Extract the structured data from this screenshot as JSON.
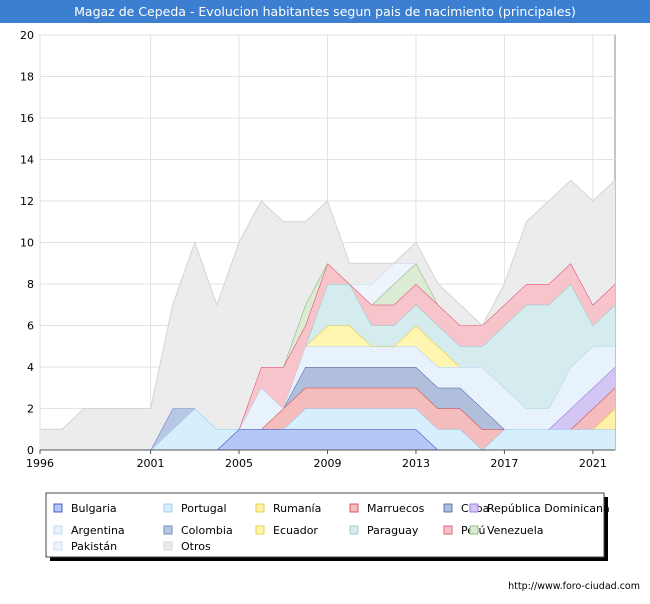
{
  "chart_data": {
    "type": "area",
    "title": "Magaz de Cepeda - Evolucion habitantes segun pais de nacimiento (principales)",
    "xlabel": "",
    "ylabel": "",
    "xlim": [
      1996,
      2022
    ],
    "ylim": [
      0,
      20
    ],
    "x_ticks": [
      1996,
      2001,
      2005,
      2009,
      2013,
      2017,
      2021
    ],
    "y_ticks": [
      0,
      2,
      4,
      6,
      8,
      10,
      12,
      14,
      16,
      18,
      20
    ],
    "grid": true,
    "legend_position": "bottom",
    "x": [
      1996,
      1997,
      1998,
      1999,
      2000,
      2001,
      2002,
      2003,
      2004,
      2005,
      2006,
      2007,
      2008,
      2009,
      2010,
      2011,
      2012,
      2013,
      2014,
      2015,
      2016,
      2017,
      2018,
      2019,
      2020,
      2021,
      2022
    ],
    "series": [
      {
        "name": "Bulgaria",
        "fill": "#b3c8f5",
        "line": "#2a3cbf",
        "values": [
          0,
          0,
          0,
          0,
          0,
          0,
          0,
          0,
          0,
          1,
          1,
          1,
          1,
          1,
          1,
          1,
          1,
          1,
          0,
          0,
          0,
          0,
          0,
          0,
          0,
          0,
          0
        ]
      },
      {
        "name": "Portugal",
        "fill": "#d7eefc",
        "line": "#8cc8f0",
        "values": [
          0,
          0,
          0,
          0,
          0,
          0,
          1,
          2,
          1,
          0,
          0,
          0,
          1,
          1,
          1,
          1,
          1,
          1,
          1,
          1,
          0,
          1,
          1,
          1,
          1,
          1,
          1
        ]
      },
      {
        "name": "Rumanía",
        "fill": "#fff2a8",
        "line": "#d8c830",
        "values": [
          0,
          0,
          0,
          0,
          0,
          0,
          0,
          0,
          0,
          0,
          0,
          0,
          0,
          0,
          0,
          0,
          0,
          0,
          0,
          0,
          0,
          0,
          0,
          0,
          0,
          0,
          1
        ]
      },
      {
        "name": "Marruecos",
        "fill": "#f4bcbc",
        "line": "#d23c3c",
        "values": [
          0,
          0,
          0,
          0,
          0,
          0,
          0,
          0,
          0,
          0,
          0,
          1,
          1,
          1,
          1,
          1,
          1,
          1,
          1,
          1,
          1,
          0,
          0,
          0,
          0,
          1,
          1
        ]
      },
      {
        "name": "Cuba",
        "fill": "#b0c0dc",
        "line": "#4a5ca0",
        "values": [
          0,
          0,
          0,
          0,
          0,
          0,
          0,
          0,
          0,
          0,
          0,
          0,
          1,
          1,
          1,
          1,
          1,
          1,
          1,
          1,
          1,
          0,
          0,
          0,
          0,
          0,
          0
        ]
      },
      {
        "name": "República Dominicana",
        "fill": "#d4c6f4",
        "line": "#8c6cd8",
        "values": [
          0,
          0,
          0,
          0,
          0,
          0,
          0,
          0,
          0,
          0,
          0,
          0,
          0,
          0,
          0,
          0,
          0,
          0,
          0,
          0,
          0,
          0,
          0,
          0,
          1,
          1,
          1
        ]
      },
      {
        "name": "Argentina",
        "fill": "#e8f2fc",
        "line": "#b4d0ec",
        "values": [
          0,
          0,
          0,
          0,
          0,
          0,
          0,
          0,
          0,
          0,
          2,
          0,
          1,
          1,
          1,
          1,
          1,
          1,
          1,
          1,
          2,
          2,
          1,
          1,
          2,
          2,
          1
        ]
      },
      {
        "name": "Colombia",
        "fill": "#b8c8e4",
        "line": "#5a78b8",
        "values": [
          0,
          0,
          0,
          0,
          0,
          0,
          1,
          0,
          0,
          0,
          0,
          0,
          0,
          0,
          0,
          0,
          0,
          0,
          0,
          0,
          0,
          0,
          0,
          0,
          0,
          0,
          0
        ]
      },
      {
        "name": "Ecuador",
        "fill": "#fff4b0",
        "line": "#e0c830",
        "values": [
          0,
          0,
          0,
          0,
          0,
          0,
          0,
          0,
          0,
          0,
          0,
          0,
          0,
          1,
          1,
          0,
          0,
          1,
          1,
          0,
          0,
          0,
          0,
          0,
          0,
          0,
          0
        ]
      },
      {
        "name": "Paraguay",
        "fill": "#d4eced",
        "line": "#8cc8c8",
        "values": [
          0,
          0,
          0,
          0,
          0,
          0,
          0,
          0,
          0,
          0,
          0,
          0,
          0,
          2,
          2,
          1,
          1,
          1,
          1,
          1,
          1,
          3,
          5,
          5,
          4,
          1,
          2
        ]
      },
      {
        "name": "Perú",
        "fill": "#f8c4cc",
        "line": "#e04060",
        "values": [
          0,
          0,
          0,
          0,
          0,
          0,
          0,
          0,
          0,
          0,
          1,
          2,
          1,
          1,
          0,
          1,
          1,
          1,
          1,
          1,
          1,
          1,
          1,
          1,
          1,
          1,
          1
        ]
      },
      {
        "name": "Venezuela",
        "fill": "#dcebd4",
        "line": "#80b070",
        "values": [
          0,
          0,
          0,
          0,
          0,
          0,
          0,
          0,
          0,
          0,
          0,
          0,
          1,
          0,
          0,
          0,
          1,
          1,
          0,
          0,
          0,
          0,
          0,
          0,
          0,
          0,
          0
        ]
      },
      {
        "name": "Pakistán",
        "fill": "#eef4fc",
        "line": "#c4d4ec",
        "values": [
          0,
          0,
          0,
          0,
          0,
          0,
          0,
          0,
          0,
          0,
          0,
          0,
          0,
          0,
          0,
          1,
          1,
          0,
          0,
          0,
          0,
          0,
          0,
          0,
          0,
          0,
          0
        ]
      },
      {
        "name": "Otros",
        "fill": "#ececec",
        "line": "#d4d4d4",
        "values": [
          1,
          1,
          2,
          2,
          2,
          2,
          5,
          8,
          6,
          9,
          8,
          7,
          4,
          3,
          1,
          1,
          0,
          1,
          1,
          1,
          0,
          1,
          3,
          4,
          4,
          5,
          5
        ]
      }
    ],
    "footer": "http://www.foro-ciudad.com"
  }
}
